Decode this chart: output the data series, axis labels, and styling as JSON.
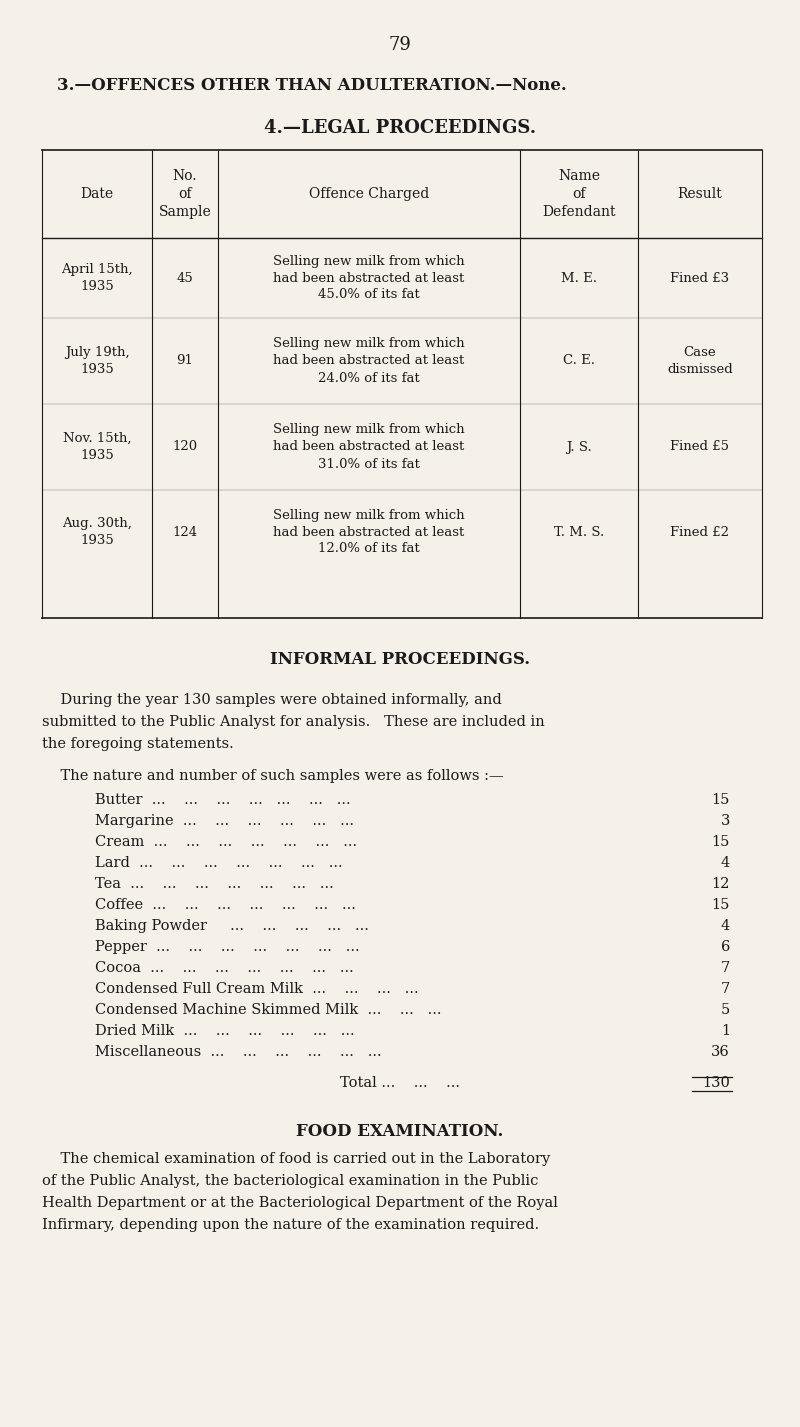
{
  "page_number": "79",
  "bg_color": "#f5f0e8",
  "text_color": "#1a1a1a",
  "heading1": "3.—OFFENCES OTHER THAN ADULTERATION.—None.",
  "heading2": "4.—LEGAL PROCEEDINGS.",
  "table_headers": [
    "Date",
    "No.\nof\nSample",
    "Offence Charged",
    "Name\nof\nDefendant",
    "Result"
  ],
  "table_rows": [
    [
      "April 15th,\n1935",
      "45",
      "Selling new milk from which\nhad been abstracted at least\n45.0% of its fat",
      "M. E.",
      "Fined £3"
    ],
    [
      "July 19th,\n1935",
      "91",
      "Selling new milk from which\nhad been abstracted at least\n24.0% of its fat",
      "C. E.",
      "Case\ndismissed"
    ],
    [
      "Nov. 15th,\n1935",
      "120",
      "Selling new milk from which\nhad been abstracted at least\n31.0% of its fat",
      "J. S.",
      "Fined £5"
    ],
    [
      "Aug. 30th,\n1935",
      "124",
      "Selling new milk from which\nhad been abstracted at least\n12.0% of its fat",
      "T. M. S.",
      "Fined £2"
    ]
  ],
  "informal_heading": "INFORMAL PROCEEDINGS.",
  "informal_para_lines": [
    "    During the year 130 samples were obtained informally, and",
    "submitted to the Public Analyst for analysis.   These are included in",
    "the foregoing statements."
  ],
  "samples_intro": "    The nature and number of such samples were as follows :—",
  "samples": [
    [
      "Butter  ...    ...    ...    ...   ...    ...   ...",
      "15"
    ],
    [
      "Margarine  ...    ...    ...    ...    ...   ...",
      "3"
    ],
    [
      "Cream  ...    ...    ...    ...    ...    ...   ...",
      "15"
    ],
    [
      "Lard  ...    ...    ...    ...    ...    ...   ...",
      "4"
    ],
    [
      "Tea  ...    ...    ...    ...    ...    ...   ...",
      "12"
    ],
    [
      "Coffee  ...    ...    ...    ...    ...    ...   ...",
      "15"
    ],
    [
      "Baking Powder     ...    ...    ...    ...   ...",
      "4"
    ],
    [
      "Pepper  ...    ...    ...    ...    ...    ...   ...",
      "6"
    ],
    [
      "Cocoa  ...    ...    ...    ...    ...    ...   ...",
      "7"
    ],
    [
      "Condensed Full Cream Milk  ...    ...    ...   ...",
      "7"
    ],
    [
      "Condensed Machine Skimmed Milk  ...    ...   ...",
      "5"
    ],
    [
      "Dried Milk  ...    ...    ...    ...    ...   ...",
      "1"
    ],
    [
      "Miscellaneous  ...    ...    ...    ...    ...   ...",
      "36"
    ]
  ],
  "total_label": "Total ...    ...    ...",
  "total_value": "130",
  "food_heading": "FOOD EXAMINATION.",
  "food_para_lines": [
    "    The chemical examination of food is carried out in the Laboratory",
    "of the Public Analyst, the bacteriological examination in the Public",
    "Health Department or at the Bacteriological Department of the Royal",
    "Infirmary, depending upon the nature of the examination required."
  ]
}
